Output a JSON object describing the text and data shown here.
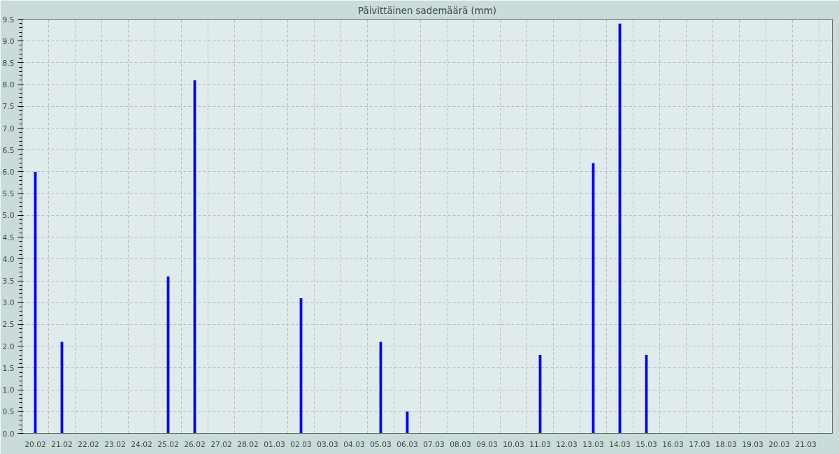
{
  "chart_data": {
    "type": "bar",
    "title": "Päivittäinen sademäärä (mm)",
    "categories": [
      "20.02",
      "21.02",
      "22.02",
      "23.02",
      "24.02",
      "25.02",
      "26.02",
      "27.02",
      "28.02",
      "01.03",
      "02.03",
      "03.03",
      "04.03",
      "05.03",
      "06.03",
      "07.03",
      "08.03",
      "09.03",
      "10.03",
      "11.03",
      "12.03",
      "13.03",
      "14.03",
      "15.03",
      "16.03",
      "17.03",
      "18.03",
      "19.03",
      "20.03",
      "21.03"
    ],
    "series": [
      {
        "color": "#0000ff",
        "values": [
          6.0,
          2.1,
          null,
          null,
          null,
          3.6,
          8.1,
          null,
          null,
          null,
          3.1,
          null,
          null,
          2.1,
          0.5,
          null,
          null,
          null,
          null,
          1.8,
          null,
          6.2,
          9.4,
          1.8,
          null,
          null,
          null,
          null,
          null,
          null
        ]
      }
    ],
    "ylim": [
      0,
      9.5
    ],
    "yticks": [
      {
        "value": 0,
        "label": "0.0"
      },
      {
        "value": 0.5,
        "label": "0.5"
      },
      {
        "value": 1,
        "label": "1.0"
      },
      {
        "value": 1.5,
        "label": "1.5"
      },
      {
        "value": 2,
        "label": "2.0"
      },
      {
        "value": 2.5,
        "label": "2.5"
      },
      {
        "value": 3,
        "label": "3.0"
      },
      {
        "value": 3.5,
        "label": "3.5"
      },
      {
        "value": 4,
        "label": "4.0"
      },
      {
        "value": 4.5,
        "label": "4.5"
      },
      {
        "value": 5,
        "label": "5.0"
      },
      {
        "value": 5.5,
        "label": "5.5"
      },
      {
        "value": 6,
        "label": "6.0"
      },
      {
        "value": 6.5,
        "label": "6.5"
      },
      {
        "value": 7,
        "label": "7.0"
      },
      {
        "value": 7.5,
        "label": "7.5"
      },
      {
        "value": 8,
        "label": "8.0"
      },
      {
        "value": 8.5,
        "label": "8.5"
      },
      {
        "value": 9,
        "label": "9.0"
      },
      {
        "value": 9.5,
        "label": "9.5"
      }
    ],
    "grid": true
  }
}
